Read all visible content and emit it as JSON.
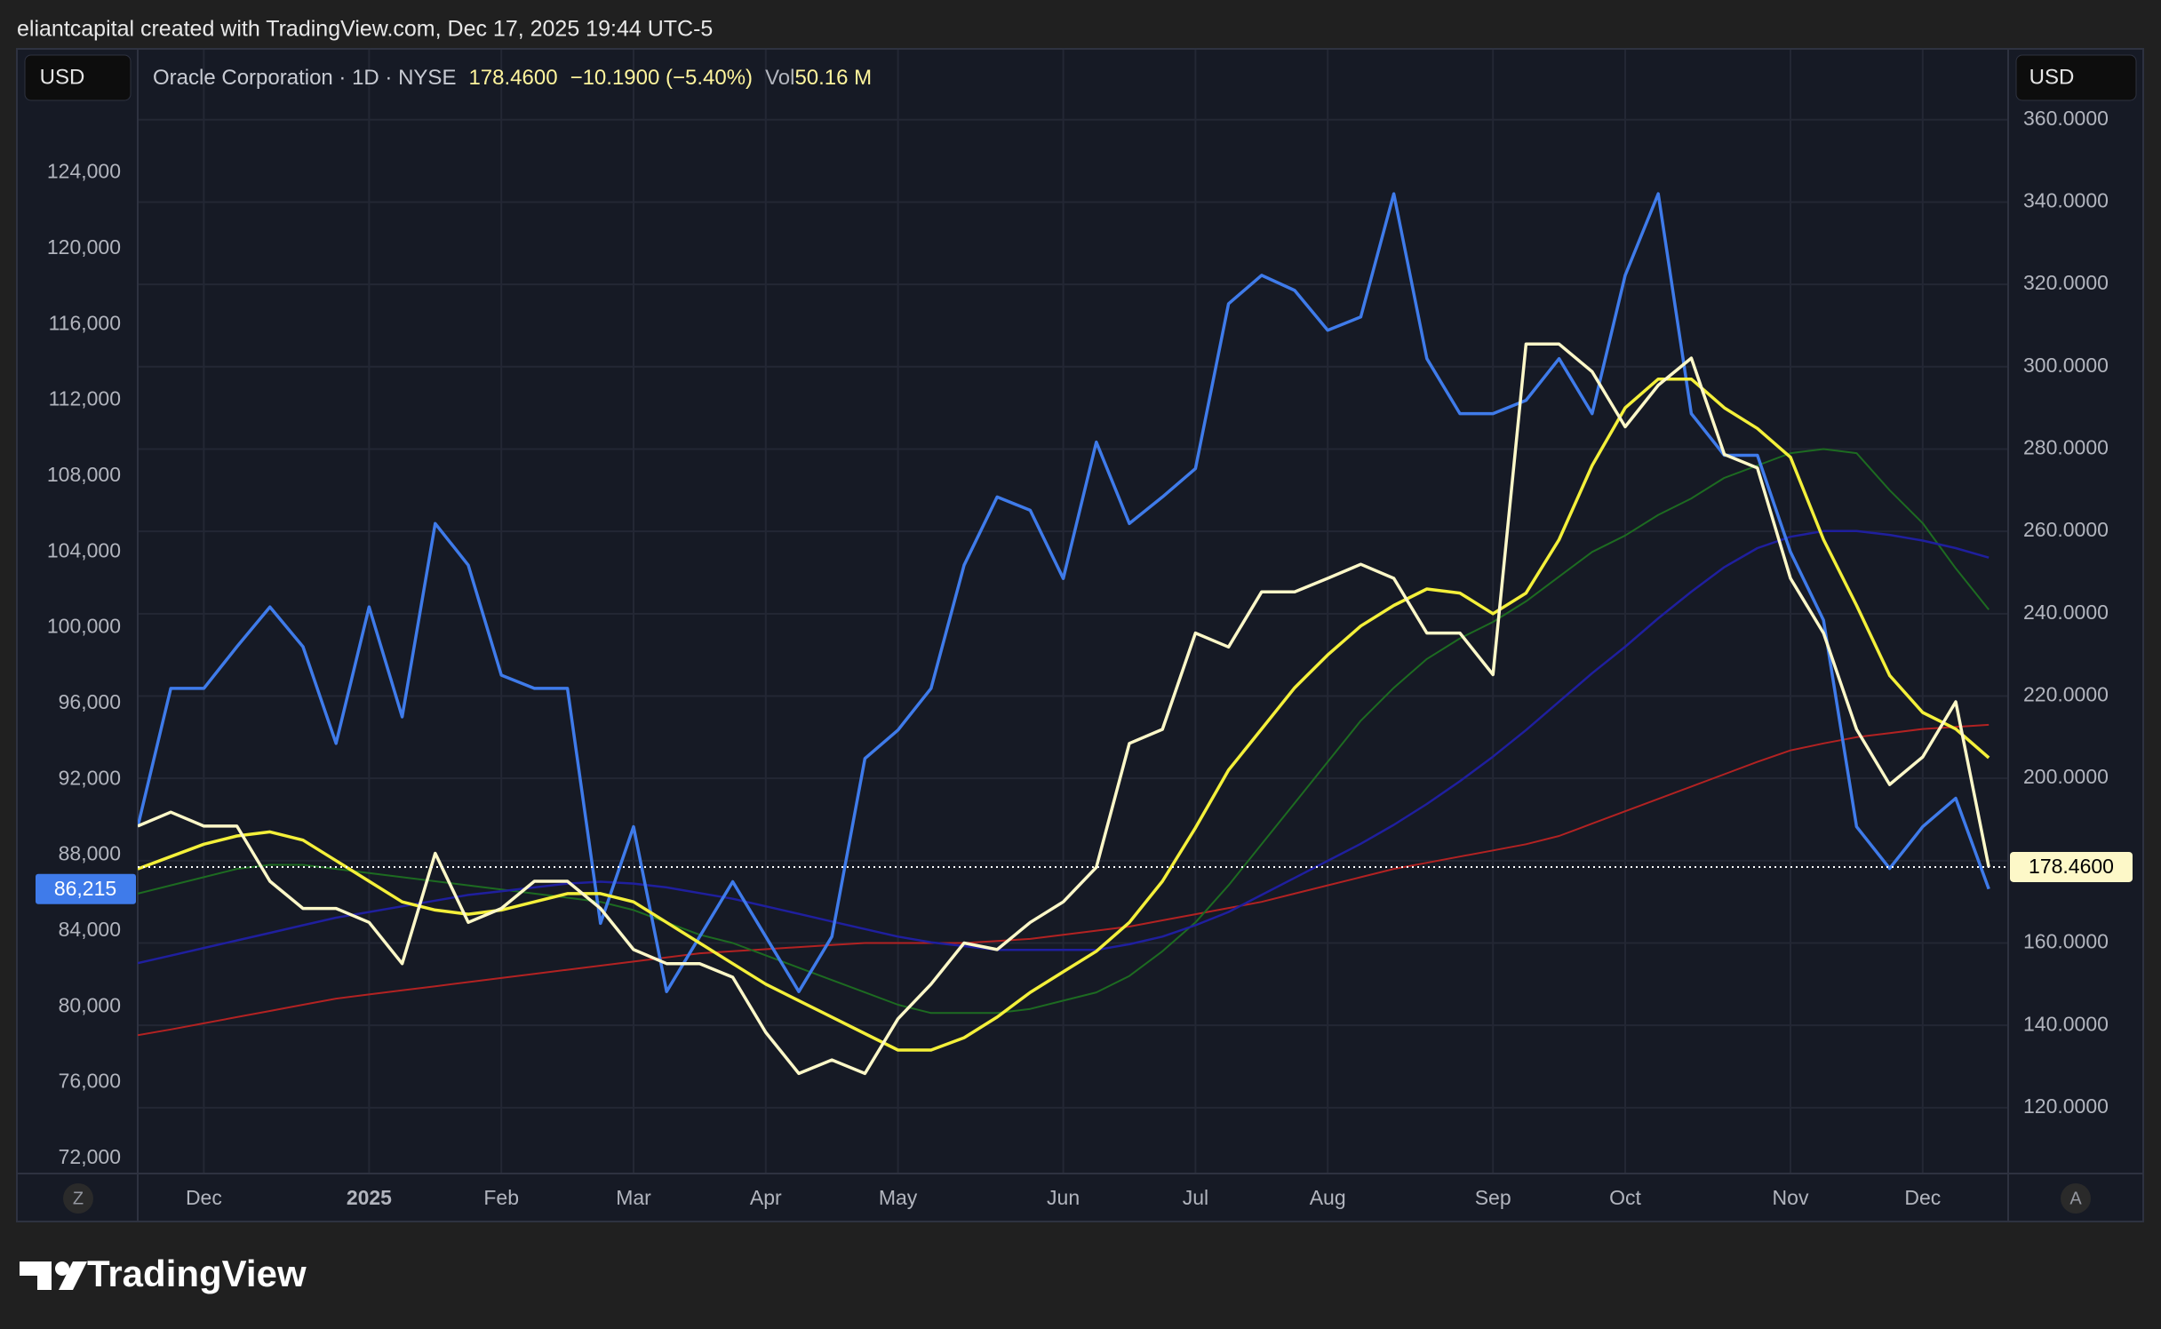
{
  "top_bar": {
    "text": "eliantcapital created with TradingView.com, Dec 17, 2025 19:44 UTC-5"
  },
  "header": {
    "symbol": "Oracle Corporation · 1D · NYSE",
    "price": "178.4600",
    "change": "−10.1900 (−5.40%)",
    "volume_label": "Vol",
    "volume": "50.16 M"
  },
  "currency_left": "USD",
  "currency_right": "USD",
  "buttons": {
    "left": "Z",
    "right": "A"
  },
  "footer": {
    "logo": "TradingView"
  },
  "chart_data": {
    "type": "line",
    "categories": [
      null,
      null,
      "Dec",
      null,
      null,
      null,
      null,
      "2025",
      null,
      null,
      null,
      "Feb",
      null,
      null,
      null,
      "Mar",
      null,
      null,
      null,
      "Apr",
      null,
      null,
      null,
      "May",
      null,
      null,
      null,
      null,
      "Jun",
      null,
      null,
      null,
      "Jul",
      null,
      null,
      null,
      "Aug",
      null,
      null,
      null,
      null,
      "Sep",
      null,
      null,
      null,
      "Oct",
      null,
      null,
      null,
      null,
      "Nov",
      null,
      null,
      null,
      "Dec",
      null,
      null
    ],
    "ylim": [
      71200,
      130500
    ],
    "yticks": [
      {
        "value": 72000,
        "label": "72,000"
      },
      {
        "value": 76000,
        "label": "76,000"
      },
      {
        "value": 80000,
        "label": "80,000"
      },
      {
        "value": 84000,
        "label": "84,000"
      },
      {
        "value": 88000,
        "label": "88,000"
      },
      {
        "value": 92000,
        "label": "92,000"
      },
      {
        "value": 96000,
        "label": "96,000"
      },
      {
        "value": 100000,
        "label": "100,000"
      },
      {
        "value": 104000,
        "label": "104,000"
      },
      {
        "value": 108000,
        "label": "108,000"
      },
      {
        "value": 112000,
        "label": "112,000"
      },
      {
        "value": 116000,
        "label": "116,000"
      },
      {
        "value": 120000,
        "label": "120,000"
      },
      {
        "value": 124000,
        "label": "124,000"
      }
    ],
    "y2lim": [
      104,
      377
    ],
    "y2ticks": [
      {
        "value": 120,
        "label": "120.0000"
      },
      {
        "value": 140,
        "label": "140.0000"
      },
      {
        "value": 160,
        "label": "160.0000"
      },
      {
        "value": 180,
        "label": "180.0000"
      },
      {
        "value": 200,
        "label": "200.0000"
      },
      {
        "value": 220,
        "label": "220.0000"
      },
      {
        "value": 240,
        "label": "240.0000"
      },
      {
        "value": 260,
        "label": "260.0000"
      },
      {
        "value": 280,
        "label": "280.0000"
      },
      {
        "value": 300,
        "label": "300.0000"
      },
      {
        "value": 320,
        "label": "320.0000"
      },
      {
        "value": 340,
        "label": "340.0000"
      },
      {
        "value": 360,
        "label": "360.0000"
      }
    ],
    "grid": true,
    "series": [
      {
        "color": "#b22222",
        "axis": "y2",
        "width": 2,
        "values": [
          137.6,
          139,
          140.5,
          142,
          143.5,
          145,
          146.5,
          147.5,
          148.5,
          149.5,
          150.5,
          151.5,
          152.5,
          153.5,
          154.5,
          155.5,
          156.5,
          157.5,
          158,
          158.5,
          159,
          159.5,
          160,
          160,
          160,
          160,
          160.5,
          161,
          162,
          163,
          164,
          165.5,
          167,
          168.5,
          170,
          172,
          174,
          176,
          178,
          179.5,
          181,
          182.5,
          184,
          186,
          189,
          192,
          195,
          198,
          201,
          204,
          206.8,
          208.5,
          210,
          211,
          212,
          212.5,
          213
        ]
      },
      {
        "color": "#1d6b21",
        "axis": "y2",
        "width": 2,
        "values": [
          172,
          174,
          176,
          178,
          179,
          179,
          178,
          177,
          176,
          175,
          174,
          173,
          172,
          171,
          170,
          168,
          165,
          162,
          160,
          157,
          154,
          151,
          148,
          145,
          143,
          143,
          143,
          144,
          146,
          148,
          152,
          158,
          165,
          174,
          184,
          194,
          204,
          214,
          222,
          229,
          234,
          238,
          243,
          249,
          255,
          259,
          264,
          268,
          273,
          276,
          279,
          280,
          279,
          270,
          262,
          251,
          241
        ]
      },
      {
        "color": "#1f1f9e",
        "axis": "y",
        "width": 2.5,
        "values": [
          82300,
          82700,
          83100,
          83500,
          83900,
          84300,
          84700,
          85000,
          85300,
          85600,
          85900,
          86100,
          86300,
          86500,
          86600,
          86500,
          86300,
          86000,
          85700,
          85300,
          84900,
          84500,
          84100,
          83700,
          83400,
          83200,
          83000,
          83000,
          83000,
          83000,
          83300,
          83700,
          84300,
          85000,
          85900,
          86800,
          87700,
          88600,
          89600,
          90700,
          91900,
          93200,
          94600,
          96100,
          97600,
          99000,
          100500,
          101900,
          103200,
          104200,
          104800,
          105100,
          105100,
          104900,
          104600,
          104200,
          103700
        ]
      },
      {
        "color": "#3f7bea",
        "axis": "y",
        "width": 3.5,
        "badge_text": "#ffffff",
        "values": [
          89500,
          96800,
          96800,
          99000,
          101100,
          99000,
          93900,
          101100,
          95300,
          105500,
          103300,
          97500,
          96800,
          96800,
          84400,
          89500,
          80800,
          83700,
          86600,
          83700,
          80800,
          83700,
          93100,
          94600,
          96800,
          103300,
          106900,
          106200,
          102600,
          109800,
          105500,
          106900,
          108400,
          117100,
          118600,
          117800,
          115700,
          116400,
          122900,
          114200,
          111300,
          111300,
          112000,
          114200,
          111300,
          118600,
          122900,
          111300,
          109100,
          109100,
          104000,
          100400,
          89500,
          87300,
          89500,
          91000,
          86215
        ],
        "value_labels": [
          null,
          null,
          null,
          null,
          null,
          null,
          null,
          null,
          null,
          null,
          null,
          null,
          null,
          null,
          null,
          null,
          null,
          null,
          null,
          null,
          null,
          null,
          null,
          null,
          null,
          null,
          null,
          null,
          null,
          null,
          null,
          null,
          null,
          null,
          null,
          null,
          null,
          null,
          null,
          null,
          null,
          null,
          null,
          null,
          null,
          null,
          null,
          null,
          null,
          null,
          null,
          null,
          null,
          null,
          null,
          null,
          "86,215"
        ]
      },
      {
        "color": "#f4f03a",
        "axis": "y2",
        "width": 3.5,
        "values": [
          178,
          181,
          184,
          186,
          187,
          185,
          180,
          175,
          170,
          168,
          167,
          168,
          170,
          172,
          172,
          170,
          165,
          160,
          155,
          150,
          146,
          142,
          138,
          134,
          134,
          137,
          142,
          148,
          153,
          158,
          165,
          175,
          188,
          202,
          212,
          222,
          230,
          237,
          242,
          246,
          245,
          240,
          245,
          258,
          276,
          290,
          297,
          297,
          290,
          285,
          278,
          258,
          242,
          225,
          216,
          212,
          205
        ]
      },
      {
        "color": "#fdf8c8",
        "axis": "y2",
        "width": 3.5,
        "badge_text": "#000000",
        "values": [
          188.4,
          191.8,
          188.4,
          188.4,
          175,
          168.4,
          168.4,
          165,
          155,
          181.8,
          165,
          168.4,
          175,
          175,
          168.4,
          158.4,
          155,
          155,
          151.7,
          138.3,
          128.3,
          131.6,
          128.3,
          141.6,
          150,
          160,
          158.4,
          165,
          170,
          178.4,
          208.5,
          211.9,
          235.3,
          231.9,
          245.3,
          245.3,
          248.6,
          252,
          248.6,
          235.3,
          235.3,
          225.2,
          305.5,
          305.5,
          298.8,
          285.4,
          295.5,
          302.1,
          278.7,
          275.4,
          248.6,
          235.3,
          211.9,
          198.5,
          205.2,
          218.6,
          178.46
        ],
        "value_labels": [
          null,
          null,
          null,
          null,
          null,
          null,
          null,
          null,
          null,
          null,
          null,
          null,
          null,
          null,
          null,
          null,
          null,
          null,
          null,
          null,
          null,
          null,
          null,
          null,
          null,
          null,
          null,
          null,
          null,
          null,
          null,
          null,
          null,
          null,
          null,
          null,
          null,
          null,
          null,
          null,
          null,
          null,
          null,
          null,
          null,
          null,
          null,
          null,
          null,
          null,
          null,
          null,
          null,
          null,
          null,
          null,
          "178.4600"
        ]
      }
    ]
  }
}
